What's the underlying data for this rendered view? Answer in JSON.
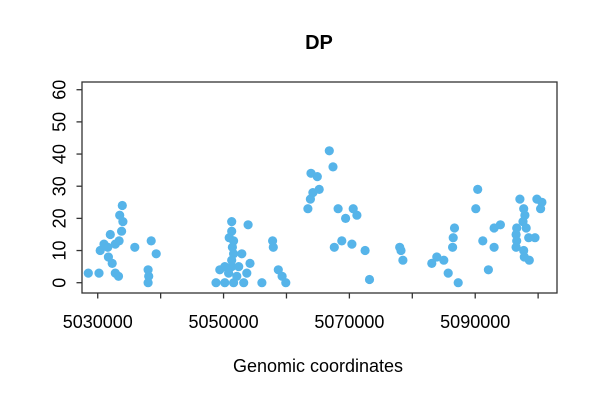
{
  "chart_data": {
    "type": "scatter",
    "title": "DP",
    "xlabel": "Genomic coordinates",
    "ylabel": "",
    "legend": null,
    "grid": false,
    "point_color": "#56B4E9",
    "axis_color": "#333333",
    "text_color": "#000000",
    "xlim": [
      5027500,
      5103000
    ],
    "ylim": [
      -3.2,
      62.4
    ],
    "x_ticks": [
      {
        "v": 5030000,
        "label": "5030000"
      },
      {
        "v": 5040000,
        "label": ""
      },
      {
        "v": 5050000,
        "label": "5050000"
      },
      {
        "v": 5060000,
        "label": ""
      },
      {
        "v": 5070000,
        "label": "5070000"
      },
      {
        "v": 5080000,
        "label": ""
      },
      {
        "v": 5090000,
        "label": "5090000"
      },
      {
        "v": 5100000,
        "label": ""
      }
    ],
    "y_ticks": [
      {
        "v": 0,
        "label": "0"
      },
      {
        "v": 10,
        "label": "10"
      },
      {
        "v": 20,
        "label": "20"
      },
      {
        "v": 30,
        "label": "30"
      },
      {
        "v": 40,
        "label": "40"
      },
      {
        "v": 50,
        "label": "50"
      },
      {
        "v": 60,
        "label": "60"
      }
    ],
    "points": [
      [
        5033900,
        24
      ],
      [
        5033500,
        21
      ],
      [
        5034000,
        19
      ],
      [
        5033800,
        16
      ],
      [
        5032000,
        15
      ],
      [
        5033400,
        13
      ],
      [
        5031000,
        12
      ],
      [
        5032800,
        12
      ],
      [
        5030400,
        10
      ],
      [
        5031600,
        11
      ],
      [
        5035900,
        11
      ],
      [
        5031700,
        8
      ],
      [
        5032300,
        6
      ],
      [
        5030200,
        3
      ],
      [
        5032800,
        3
      ],
      [
        5033300,
        2
      ],
      [
        5028500,
        3
      ],
      [
        5038500,
        13
      ],
      [
        5039300,
        9
      ],
      [
        5038000,
        4
      ],
      [
        5038100,
        2
      ],
      [
        5038000,
        0
      ],
      [
        5051300,
        19
      ],
      [
        5053900,
        18
      ],
      [
        5051300,
        16
      ],
      [
        5050900,
        14
      ],
      [
        5051600,
        13
      ],
      [
        5057800,
        13
      ],
      [
        5051400,
        11
      ],
      [
        5057900,
        11
      ],
      [
        5051600,
        9
      ],
      [
        5052900,
        9
      ],
      [
        5051300,
        7
      ],
      [
        5054200,
        6
      ],
      [
        5050200,
        5
      ],
      [
        5051300,
        5
      ],
      [
        5052400,
        5
      ],
      [
        5049400,
        4
      ],
      [
        5050800,
        3
      ],
      [
        5052100,
        2
      ],
      [
        5053700,
        3
      ],
      [
        5058700,
        4
      ],
      [
        5059300,
        2
      ],
      [
        5048800,
        0
      ],
      [
        5050200,
        0
      ],
      [
        5051600,
        0
      ],
      [
        5053200,
        0
      ],
      [
        5056100,
        0
      ],
      [
        5059900,
        0
      ],
      [
        5066800,
        41
      ],
      [
        5067400,
        36
      ],
      [
        5063900,
        34
      ],
      [
        5064900,
        33
      ],
      [
        5064200,
        28
      ],
      [
        5065200,
        29
      ],
      [
        5063800,
        26
      ],
      [
        5063400,
        23
      ],
      [
        5068200,
        23
      ],
      [
        5070600,
        23
      ],
      [
        5071200,
        21
      ],
      [
        5069400,
        20
      ],
      [
        5068800,
        13
      ],
      [
        5070400,
        12
      ],
      [
        5067600,
        11
      ],
      [
        5072500,
        10
      ],
      [
        5073200,
        1
      ],
      [
        5078000,
        11
      ],
      [
        5078200,
        10
      ],
      [
        5078500,
        7
      ],
      [
        5090400,
        29
      ],
      [
        5090100,
        23
      ],
      [
        5086700,
        17
      ],
      [
        5086500,
        14
      ],
      [
        5091200,
        13
      ],
      [
        5086400,
        11
      ],
      [
        5083900,
        8
      ],
      [
        5085000,
        7
      ],
      [
        5083100,
        6
      ],
      [
        5085700,
        3
      ],
      [
        5087300,
        0
      ],
      [
        5092100,
        4
      ],
      [
        5097100,
        26
      ],
      [
        5099800,
        26
      ],
      [
        5100600,
        25
      ],
      [
        5100400,
        23
      ],
      [
        5097700,
        23
      ],
      [
        5097900,
        21
      ],
      [
        5097600,
        19
      ],
      [
        5098100,
        17
      ],
      [
        5094000,
        18
      ],
      [
        5093000,
        17
      ],
      [
        5096600,
        17
      ],
      [
        5096500,
        15
      ],
      [
        5098500,
        14
      ],
      [
        5099500,
        14
      ],
      [
        5096600,
        13
      ],
      [
        5096500,
        11
      ],
      [
        5093000,
        11
      ],
      [
        5097700,
        10
      ],
      [
        5097800,
        8
      ],
      [
        5098600,
        7
      ]
    ]
  }
}
